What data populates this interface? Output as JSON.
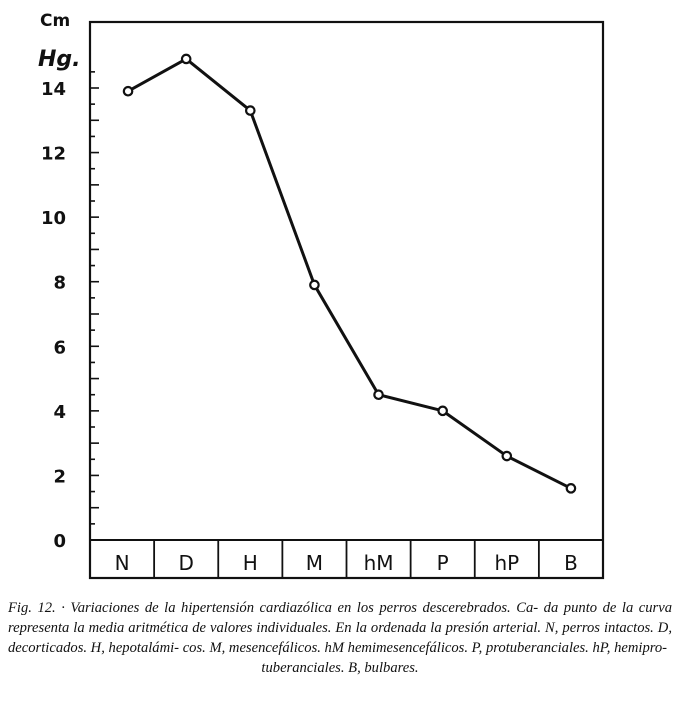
{
  "chart_data": {
    "type": "line",
    "ylabel_top": "Cm",
    "ylabel_bottom": "Hg.",
    "yticks": [
      "0",
      "2",
      "4",
      "6",
      "8",
      "10",
      "12",
      "14"
    ],
    "ylim": [
      0,
      15.5
    ],
    "categories": [
      "N",
      "D",
      "H",
      "M",
      "hM",
      "P",
      "hP",
      "B"
    ],
    "series": [
      {
        "values": [
          13.9,
          14.9,
          13.3,
          7.9,
          4.5,
          4.0,
          2.6,
          1.6
        ]
      }
    ],
    "grid": false
  },
  "caption": {
    "line1": "Fig. 12. · Variaciones de la hipertensión cardiazólica en los perros descerebrados. Ca-",
    "line2": "da punto de la curva representa la media aritmética de valores individuales. En la",
    "line3": "ordenada la presión arterial. N, perros intactos. D, decorticados. H, hepotalámi-",
    "line4": "cos. M, mesencefálicos. hM hemimesencefálicos. P, protuberanciales. hP, hemipro-",
    "line5": "tuberanciales. B, bulbares."
  }
}
